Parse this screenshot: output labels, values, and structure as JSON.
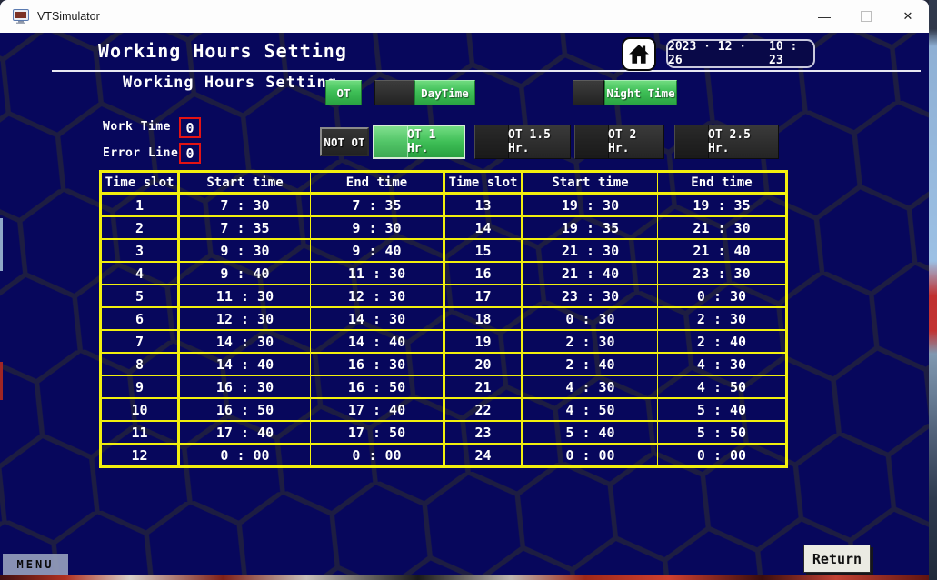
{
  "titlebar": {
    "app_title": "VTSimulator",
    "controls": {
      "minimize": "—",
      "close": "✕"
    }
  },
  "colors": {
    "background_navy": "#07075c",
    "hexagon_line": "#1d1d42",
    "accent_green": "#3fbf57",
    "table_border_yellow": "#f2ef0e",
    "value_box_red": "#e31313"
  },
  "header": {
    "page_title": "Working Hours Setting",
    "date": "2023 · 12 · 26",
    "time": "10 : 23"
  },
  "section": {
    "subtitle": "Working Hours Setting"
  },
  "shift_toggles": {
    "ot": "OT",
    "daytime": "DayTime",
    "nighttime": "Night Time"
  },
  "fields": {
    "work_time": {
      "label": "Work Time",
      "value": "0"
    },
    "error_line": {
      "label": "Error Line",
      "value": "0"
    }
  },
  "ot_buttons": {
    "not_ot": "NOT OT",
    "ot1": "OT 1 Hr.",
    "ot15": "OT 1.5 Hr.",
    "ot2": "OT 2 Hr.",
    "ot25": "OT 2.5 Hr.",
    "selected": "OT 1 Hr."
  },
  "table": {
    "headers": [
      "Time slot",
      "Start time",
      "End time",
      "Time slot",
      "Start time",
      "End time"
    ],
    "rows": [
      [
        "1",
        "7 : 30",
        "7 : 35",
        "13",
        "19 : 30",
        "19 : 35"
      ],
      [
        "2",
        "7 : 35",
        "9 : 30",
        "14",
        "19 : 35",
        "21 : 30"
      ],
      [
        "3",
        "9 : 30",
        "9 : 40",
        "15",
        "21 : 30",
        "21 : 40"
      ],
      [
        "4",
        "9 : 40",
        "11 : 30",
        "16",
        "21 : 40",
        "23 : 30"
      ],
      [
        "5",
        "11 : 30",
        "12 : 30",
        "17",
        "23 : 30",
        "0 : 30"
      ],
      [
        "6",
        "12 : 30",
        "14 : 30",
        "18",
        "0 : 30",
        "2 : 30"
      ],
      [
        "7",
        "14 : 30",
        "14 : 40",
        "19",
        "2 : 30",
        "2 : 40"
      ],
      [
        "8",
        "14 : 40",
        "16 : 30",
        "20",
        "2 : 40",
        "4 : 30"
      ],
      [
        "9",
        "16 : 30",
        "16 : 50",
        "21",
        "4 : 30",
        "4 : 50"
      ],
      [
        "10",
        "16 : 50",
        "17 : 40",
        "22",
        "4 : 50",
        "5 : 40"
      ],
      [
        "11",
        "17 : 40",
        "17 : 50",
        "23",
        "5 : 40",
        "5 : 50"
      ],
      [
        "12",
        "0 : 00",
        "0 : 00",
        "24",
        "0 : 00",
        "0 : 00"
      ]
    ]
  },
  "footer": {
    "menu": "MENU",
    "return": "Return"
  }
}
